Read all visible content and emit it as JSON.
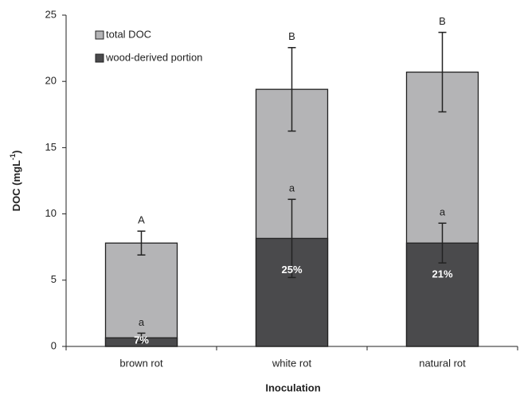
{
  "chart_data": {
    "type": "bar",
    "layout": "overlay",
    "xlabel": "Inoculation",
    "ylabel": {
      "main": "DOC (mgL",
      "sup": "-1",
      "end": ")"
    },
    "categories": [
      "brown rot",
      "white rot",
      "natural rot"
    ],
    "series": [
      {
        "name": "total DOC",
        "color": "#b4b4b6",
        "values": [
          7.8,
          19.4,
          20.7
        ],
        "errors": [
          0.9,
          3.15,
          3.0
        ],
        "letters": [
          "A",
          "B",
          "B"
        ]
      },
      {
        "name": "wood-derived portion",
        "color": "#4a4a4c",
        "values": [
          0.65,
          8.15,
          7.8
        ],
        "errors": [
          0.35,
          2.95,
          1.5
        ],
        "letters": [
          "a",
          "a",
          "a"
        ],
        "percent_labels": [
          "7%",
          "25%",
          "21%"
        ]
      }
    ],
    "ylim": [
      0,
      25
    ],
    "yticks": [
      0,
      5,
      10,
      15,
      20,
      25
    ],
    "legend": "upper left",
    "grid": false
  }
}
